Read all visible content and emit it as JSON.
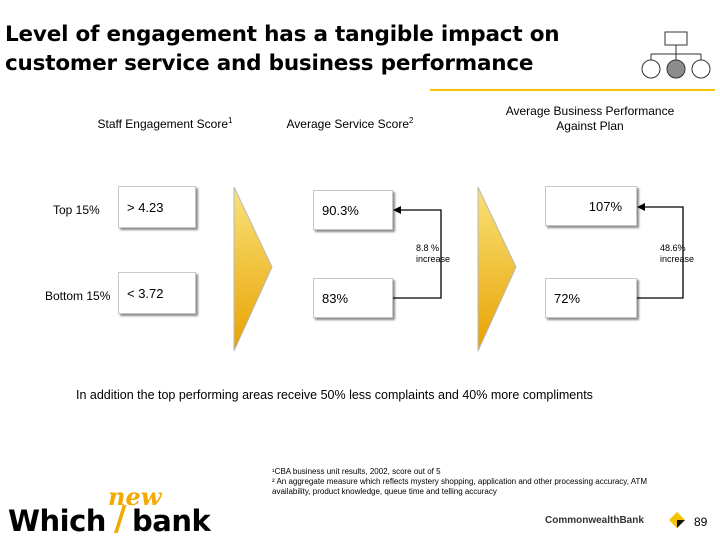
{
  "title": {
    "line1": "Level of engagement has a tangible impact on",
    "line2": "customer service and business performance"
  },
  "columns": {
    "staff": {
      "header": "Staff Engagement Score",
      "footnote_ref": "1"
    },
    "service": {
      "header": "Average Service Score",
      "footnote_ref": "2"
    },
    "business": {
      "header_line1": "Average Business Performance",
      "header_line2": "Against Plan"
    }
  },
  "rows": {
    "top": {
      "label": "Top 15%",
      "staff": "> 4.23",
      "service": "90.3%",
      "business": "107%"
    },
    "bottom": {
      "label": "Bottom 15%",
      "staff": "< 3.72",
      "service": "83%",
      "business": "72%"
    }
  },
  "increases": {
    "service": {
      "line1": "8.8 %",
      "line2": "increase"
    },
    "business": {
      "line1": "48.6%",
      "line2": "increase"
    }
  },
  "note": "In addition the top performing areas receive 50% less complaints and 40% more compliments",
  "footnotes": {
    "f1": "¹CBA business unit results, 2002, score out of 5",
    "f2_line1": "² An aggregate measure which reflects mystery shopping, application and other processing accuracy, ATM",
    "f2_line2": "availability, product knowledge, queue time and telling accuracy"
  },
  "logos": {
    "which": "Which",
    "new": "new",
    "bank": "bank",
    "commonwealth": "CommonwealthBank"
  },
  "page_number": "89",
  "colors": {
    "accent": "#f5c400",
    "arrow_gradient_top": "#f9e27a",
    "arrow_gradient_bottom": "#e8a200",
    "logo_new": "#f2a900"
  }
}
